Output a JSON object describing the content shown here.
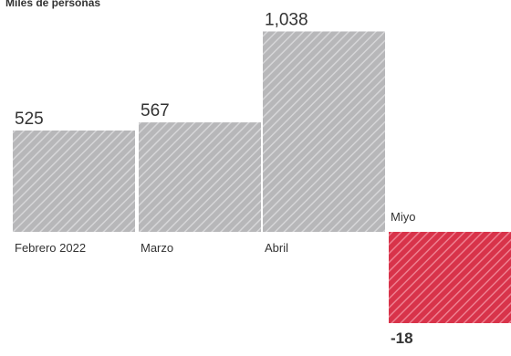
{
  "chart_data": {
    "type": "bar",
    "unit_label": "Miles de personas",
    "categories": [
      "Febrero 2022",
      "Marzo",
      "Abril",
      "Miyo"
    ],
    "values": [
      525,
      567,
      1038,
      -18
    ],
    "value_labels": [
      "525",
      "567",
      "1,038",
      "-18"
    ],
    "ylim": [
      -320,
      1110
    ],
    "grid": false,
    "legend": "none",
    "colors": {
      "positive": "#b7b7b9",
      "positive_stripe": "#d6d6d8",
      "negative": "#d8334a",
      "negative_stripe": "#ee7f90",
      "text": "#333333"
    }
  }
}
